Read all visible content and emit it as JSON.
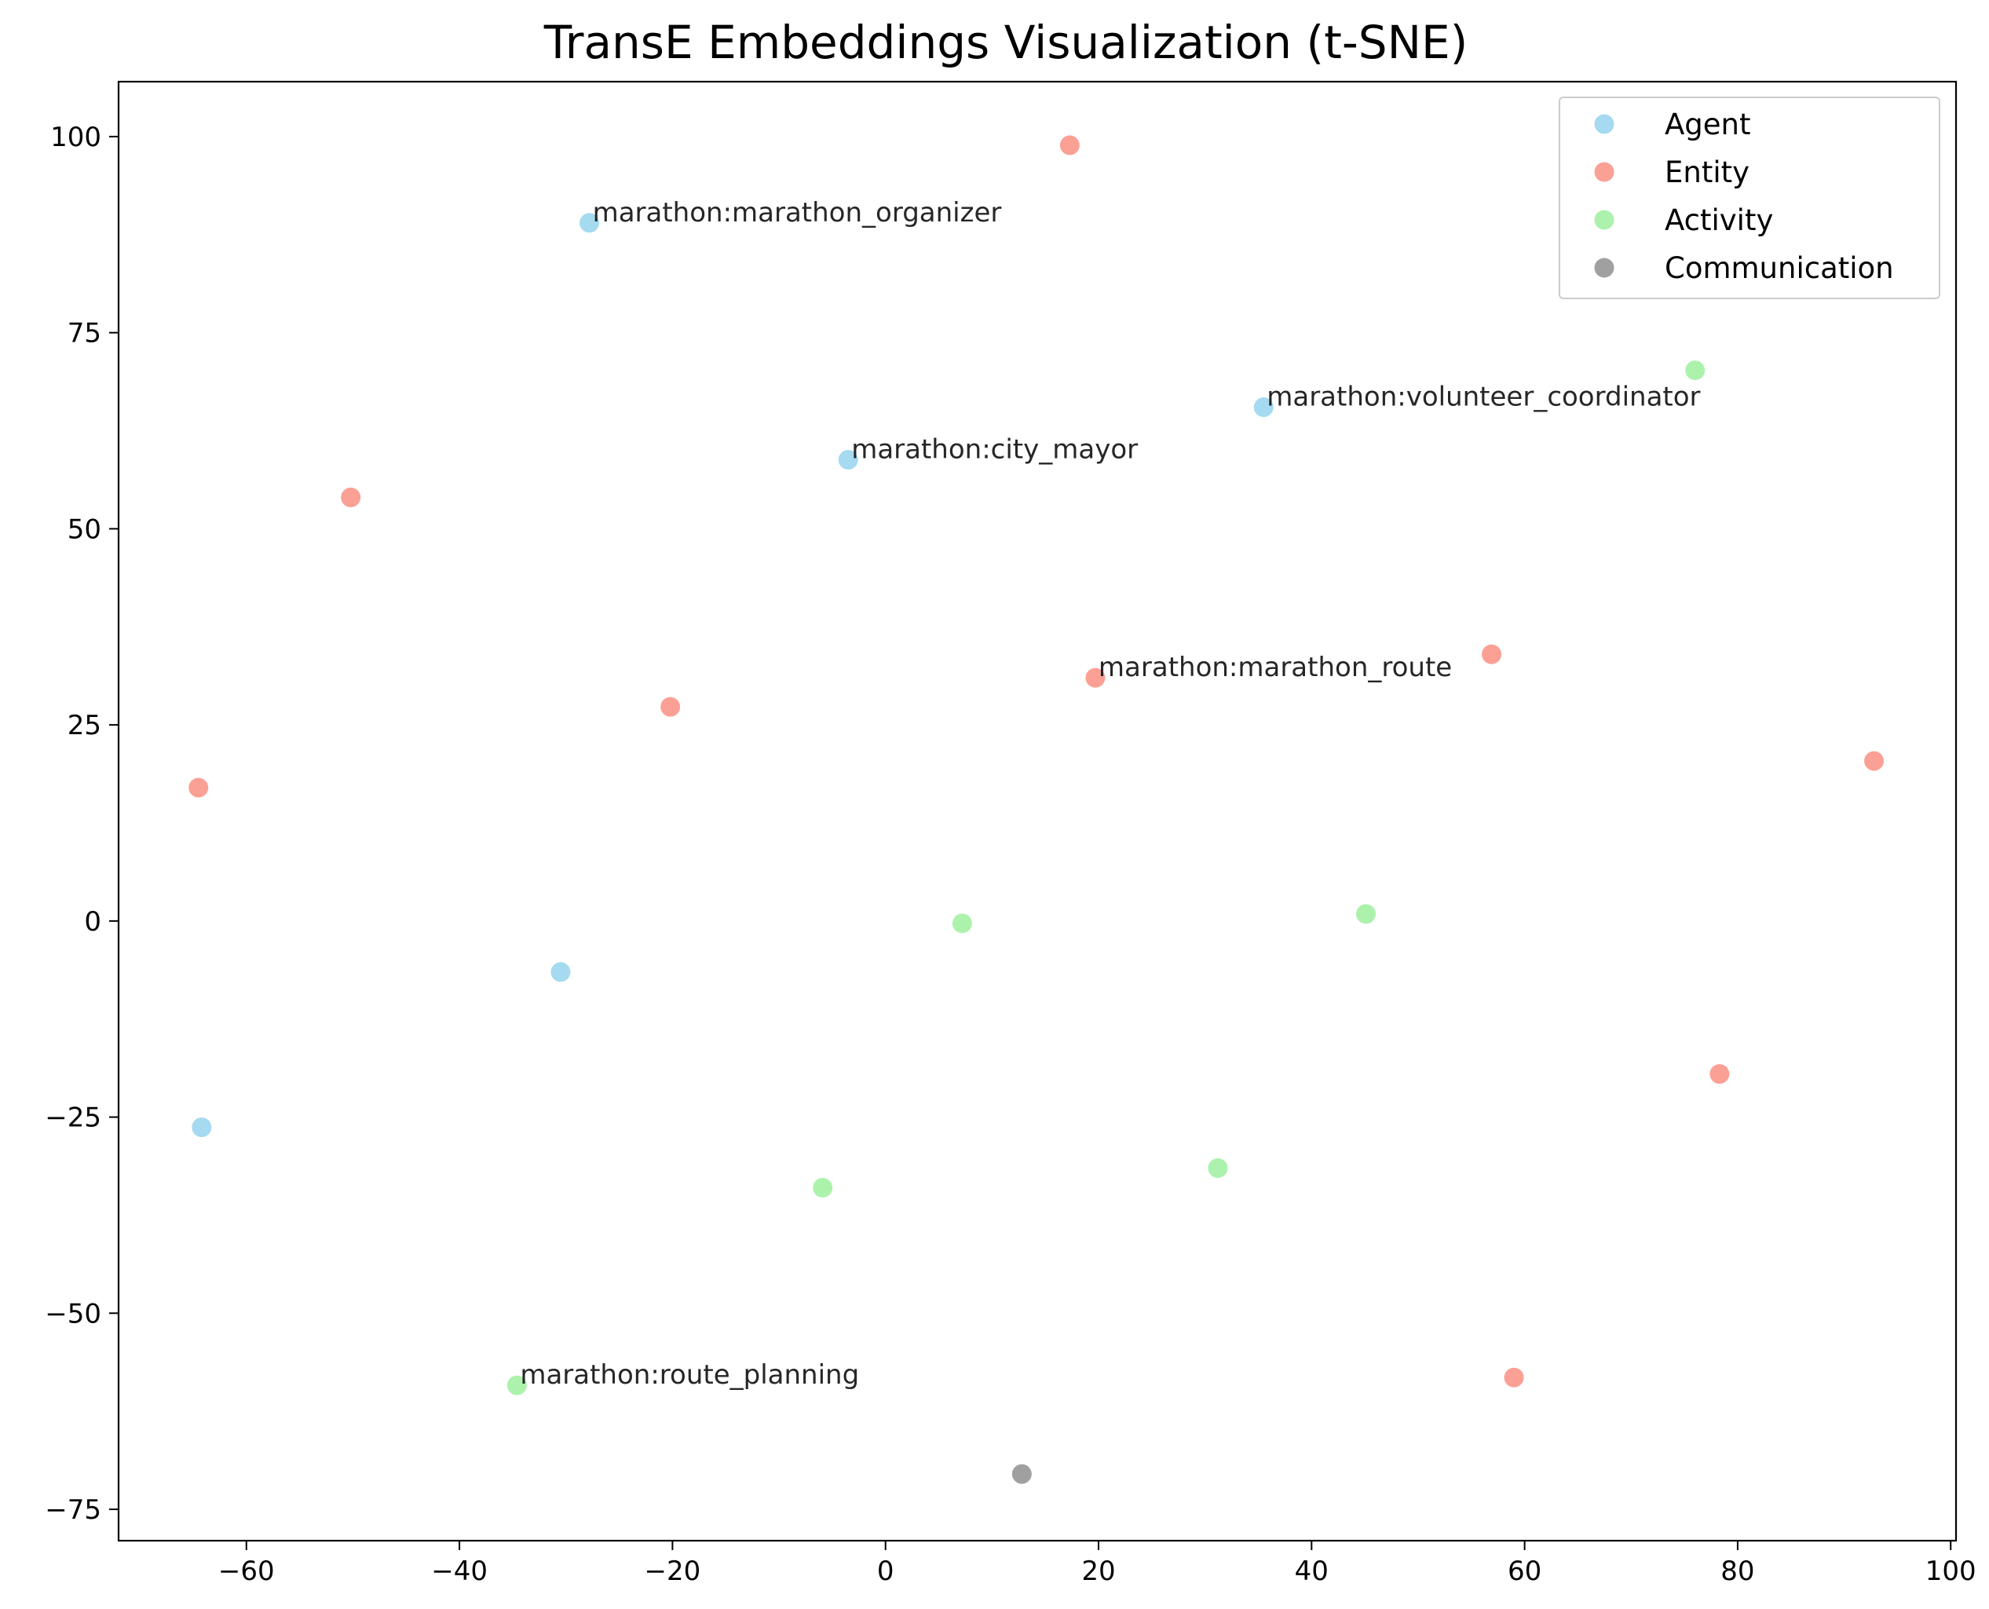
{
  "chart_data": {
    "type": "scatter",
    "title": "TransE Embeddings Visualization (t-SNE)",
    "xlabel": "",
    "ylabel": "",
    "xlim": [
      -72,
      100.5
    ],
    "ylim": [
      -79,
      107
    ],
    "xticks": [
      -60,
      -40,
      -20,
      0,
      20,
      40,
      60,
      80,
      100
    ],
    "yticks": [
      -75,
      -50,
      -25,
      0,
      25,
      50,
      75,
      100
    ],
    "xtick_labels": [
      "−60",
      "−40",
      "−20",
      "0",
      "20",
      "40",
      "60",
      "80",
      "100"
    ],
    "ytick_labels": [
      "−75",
      "−50",
      "−25",
      "0",
      "25",
      "50",
      "75",
      "100"
    ],
    "grid": false,
    "legend_position": "upper right",
    "series": [
      {
        "name": "Agent",
        "color": "#87ceeb",
        "points": [
          {
            "x": -27.8,
            "y": 89.0,
            "label": "marathon:marathon_organizer"
          },
          {
            "x": -3.5,
            "y": 58.8,
            "label": "marathon:city_mayor"
          },
          {
            "x": 35.5,
            "y": 65.5,
            "label": "marathon:volunteer_coordinator"
          },
          {
            "x": -30.5,
            "y": -6.5,
            "label": ""
          },
          {
            "x": -64.2,
            "y": -26.3,
            "label": ""
          }
        ]
      },
      {
        "name": "Entity",
        "color": "#fa8072",
        "points": [
          {
            "x": 17.3,
            "y": 98.9,
            "label": ""
          },
          {
            "x": -50.2,
            "y": 54.0,
            "label": ""
          },
          {
            "x": -20.2,
            "y": 27.3,
            "label": ""
          },
          {
            "x": 19.7,
            "y": 31.0,
            "label": "marathon:marathon_route"
          },
          {
            "x": 56.9,
            "y": 34.0,
            "label": ""
          },
          {
            "x": 92.8,
            "y": 20.4,
            "label": ""
          },
          {
            "x": -64.5,
            "y": 17.0,
            "label": ""
          },
          {
            "x": 78.3,
            "y": -19.5,
            "label": ""
          },
          {
            "x": 59.0,
            "y": -58.2,
            "label": ""
          }
        ]
      },
      {
        "name": "Activity",
        "color": "#90ee90",
        "points": [
          {
            "x": 76.0,
            "y": 70.2,
            "label": ""
          },
          {
            "x": 7.2,
            "y": -0.3,
            "label": ""
          },
          {
            "x": 45.1,
            "y": 0.9,
            "label": ""
          },
          {
            "x": 31.2,
            "y": -31.5,
            "label": ""
          },
          {
            "x": -5.9,
            "y": -34.0,
            "label": ""
          },
          {
            "x": -34.6,
            "y": -59.2,
            "label": "marathon:route_planning"
          }
        ]
      },
      {
        "name": "Communication",
        "color": "#808080",
        "points": [
          {
            "x": 12.8,
            "y": -70.5,
            "label": ""
          }
        ]
      }
    ]
  }
}
